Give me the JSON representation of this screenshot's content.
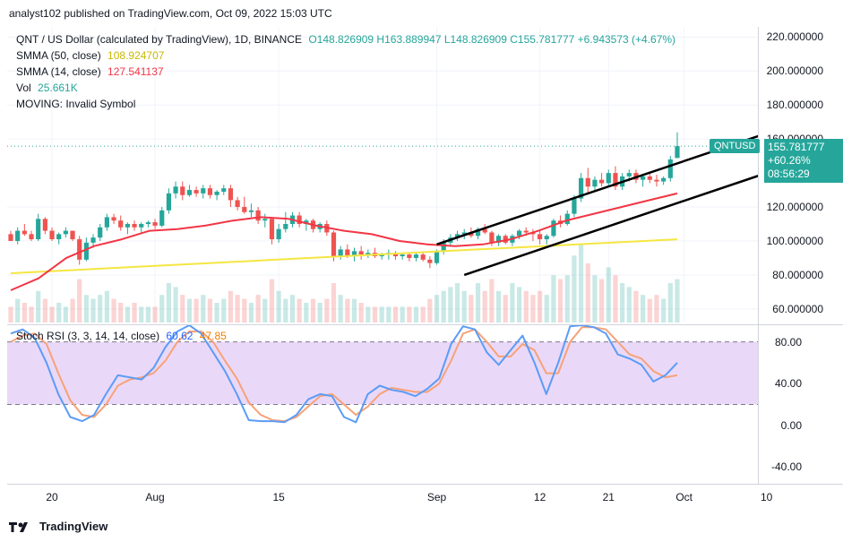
{
  "header": {
    "published": "analyst102 published on TradingView.com, Oct 09, 2022 15:03 UTC"
  },
  "legend": {
    "symbol": "QNT / US Dollar (calculated by TradingView), 1D, BINANCE",
    "ohlc": "O148.826909 H163.889947 L148.826909 C155.781777 +6.943573 (+4.67%)",
    "sma50_label": "SMMA (50, close)",
    "sma50_value": "108.924707",
    "sma14_label": "SMMA (14, close)",
    "sma14_value": "127.541137",
    "vol_label": "Vol",
    "vol_value": "25.661K",
    "moving": "MOVING: Invalid Symbol"
  },
  "rsi_legend": {
    "label": "Stoch RSI (3, 3, 14, 14, close)",
    "k": "60.62",
    "d": "47.85"
  },
  "price_tag": {
    "symbol": "QNTUSD",
    "price": "155.781777",
    "change": "+60.26%",
    "countdown": "08:56:29"
  },
  "footer": {
    "brand": "TradingView"
  },
  "colors": {
    "up": "#26a69a",
    "down": "#ef5350",
    "sma50": "#f5e642",
    "sma14": "#f23645",
    "k": "#5b9cf6",
    "d": "#f7a278",
    "band": "#e1c8f5"
  },
  "chart_data": [
    {
      "type": "candlestick",
      "ylim": [
        52,
        226
      ],
      "yticks": [
        "220.000000",
        "200.000000",
        "180.000000",
        "160.000000",
        "120.000000",
        "100.000000",
        "80.000000",
        "60.000000"
      ],
      "yticks_values": [
        220,
        200,
        180,
        160,
        120,
        100,
        80,
        60
      ],
      "xticks": [
        "20",
        "Aug",
        "15",
        "Sep",
        "12",
        "21",
        "Oct",
        "10"
      ],
      "xticks_index": [
        6,
        21,
        39,
        62,
        77,
        87,
        98,
        110
      ],
      "candles": [
        [
          104,
          106,
          100,
          100
        ],
        [
          100,
          108,
          98,
          106
        ],
        [
          106,
          110,
          103,
          104
        ],
        [
          104,
          106,
          100,
          101
        ],
        [
          101,
          116,
          100,
          113
        ],
        [
          113,
          114,
          104,
          106
        ],
        [
          106,
          108,
          100,
          101
        ],
        [
          101,
          105,
          98,
          104
        ],
        [
          104,
          108,
          102,
          106
        ],
        [
          106,
          106,
          100,
          101
        ],
        [
          101,
          103,
          86,
          89
        ],
        [
          89,
          102,
          88,
          99
        ],
        [
          99,
          104,
          96,
          102
        ],
        [
          102,
          110,
          100,
          108
        ],
        [
          108,
          116,
          106,
          114
        ],
        [
          114,
          116,
          110,
          112
        ],
        [
          112,
          115,
          106,
          108
        ],
        [
          108,
          111,
          104,
          110
        ],
        [
          110,
          112,
          106,
          108
        ],
        [
          108,
          111,
          105,
          110
        ],
        [
          110,
          112,
          108,
          111
        ],
        [
          111,
          113,
          107,
          109
        ],
        [
          109,
          120,
          108,
          118
        ],
        [
          118,
          131,
          116,
          128
        ],
        [
          128,
          135,
          125,
          132
        ],
        [
          132,
          135,
          124,
          127
        ],
        [
          127,
          133,
          126,
          130
        ],
        [
          130,
          132,
          126,
          128
        ],
        [
          128,
          133,
          125,
          131
        ],
        [
          131,
          133,
          125,
          127
        ],
        [
          127,
          130,
          124,
          129
        ],
        [
          129,
          133,
          127,
          131
        ],
        [
          131,
          133,
          120,
          124
        ],
        [
          124,
          126,
          118,
          120
        ],
        [
          120,
          126,
          116,
          117
        ],
        [
          117,
          122,
          114,
          118
        ],
        [
          118,
          120,
          110,
          112
        ],
        [
          112,
          116,
          108,
          113
        ],
        [
          113,
          114,
          98,
          101
        ],
        [
          101,
          110,
          99,
          107
        ],
        [
          107,
          117,
          105,
          110
        ],
        [
          110,
          117,
          108,
          115
        ],
        [
          115,
          117,
          108,
          110
        ],
        [
          110,
          113,
          106,
          112
        ],
        [
          112,
          113,
          105,
          107
        ],
        [
          107,
          111,
          105,
          110
        ],
        [
          110,
          112,
          103,
          105
        ],
        [
          105,
          106,
          88,
          91
        ],
        [
          91,
          97,
          89,
          95
        ],
        [
          95,
          98,
          90,
          91
        ],
        [
          91,
          96,
          88,
          94
        ],
        [
          94,
          97,
          89,
          92
        ],
        [
          92,
          95,
          90,
          93
        ],
        [
          93,
          96,
          90,
          91
        ],
        [
          91,
          93,
          89,
          92
        ],
        [
          92,
          95,
          89,
          93
        ],
        [
          93,
          94,
          89,
          91
        ],
        [
          91,
          93,
          89,
          92
        ],
        [
          92,
          93,
          88,
          90
        ],
        [
          90,
          93,
          88,
          92
        ],
        [
          92,
          94,
          88,
          89
        ],
        [
          89,
          91,
          84,
          87
        ],
        [
          87,
          95,
          86,
          94
        ],
        [
          94,
          101,
          92,
          99
        ],
        [
          99,
          104,
          97,
          102
        ],
        [
          102,
          106,
          100,
          104
        ],
        [
          104,
          107,
          101,
          105
        ],
        [
          105,
          108,
          102,
          103
        ],
        [
          103,
          108,
          101,
          107
        ],
        [
          107,
          110,
          104,
          105
        ],
        [
          105,
          106,
          97,
          99
        ],
        [
          99,
          104,
          97,
          103
        ],
        [
          103,
          104,
          98,
          99
        ],
        [
          99,
          104,
          97,
          103
        ],
        [
          103,
          107,
          101,
          106
        ],
        [
          106,
          108,
          103,
          105
        ],
        [
          105,
          107,
          100,
          104
        ],
        [
          104,
          106,
          98,
          101
        ],
        [
          101,
          104,
          98,
          103
        ],
        [
          103,
          113,
          102,
          112
        ],
        [
          112,
          115,
          108,
          110
        ],
        [
          110,
          118,
          109,
          116
        ],
        [
          116,
          127,
          114,
          125
        ],
        [
          125,
          140,
          123,
          137
        ],
        [
          137,
          143,
          128,
          132
        ],
        [
          132,
          138,
          130,
          136
        ],
        [
          136,
          140,
          132,
          134
        ],
        [
          134,
          142,
          132,
          140
        ],
        [
          140,
          144,
          130,
          132
        ],
        [
          132,
          140,
          130,
          138
        ],
        [
          138,
          142,
          135,
          140
        ],
        [
          140,
          142,
          134,
          136
        ],
        [
          136,
          139,
          132,
          138
        ],
        [
          138,
          140,
          134,
          136
        ],
        [
          136,
          139,
          132,
          135
        ],
        [
          135,
          138,
          133,
          137
        ],
        [
          137,
          150,
          135,
          148
        ],
        [
          148.83,
          163.89,
          148.83,
          155.78
        ]
      ],
      "volume_rel": [
        0.2,
        0.3,
        0.25,
        0.2,
        0.4,
        0.3,
        0.2,
        0.25,
        0.2,
        0.3,
        0.55,
        0.35,
        0.3,
        0.35,
        0.4,
        0.3,
        0.25,
        0.2,
        0.25,
        0.2,
        0.2,
        0.2,
        0.35,
        0.5,
        0.45,
        0.35,
        0.3,
        0.3,
        0.35,
        0.3,
        0.25,
        0.3,
        0.4,
        0.35,
        0.3,
        0.25,
        0.35,
        0.3,
        0.55,
        0.4,
        0.3,
        0.35,
        0.3,
        0.25,
        0.3,
        0.25,
        0.3,
        0.5,
        0.35,
        0.3,
        0.3,
        0.25,
        0.2,
        0.2,
        0.2,
        0.2,
        0.2,
        0.2,
        0.2,
        0.2,
        0.2,
        0.3,
        0.35,
        0.4,
        0.45,
        0.5,
        0.4,
        0.35,
        0.5,
        0.4,
        0.55,
        0.4,
        0.35,
        0.5,
        0.45,
        0.4,
        0.35,
        0.4,
        0.35,
        0.6,
        0.55,
        0.6,
        0.85,
        1.0,
        0.75,
        0.6,
        0.55,
        0.7,
        0.6,
        0.5,
        0.45,
        0.4,
        0.35,
        0.3,
        0.35,
        0.3,
        0.5,
        0.55
      ],
      "smma50": [
        81,
        82,
        83,
        84,
        85,
        86,
        87,
        88,
        89,
        90,
        91,
        92,
        93,
        94,
        95,
        96,
        97,
        98,
        99,
        100,
        101
      ],
      "smma14": [
        71,
        78,
        90,
        97,
        101,
        106,
        107,
        109,
        112,
        114,
        113,
        109,
        106,
        104,
        100,
        98,
        97,
        98,
        101,
        106,
        112,
        116,
        120,
        124,
        128
      ],
      "channel_upper": [
        [
          62,
          98
        ],
        [
          109,
          162
        ]
      ],
      "channel_lower": [
        [
          66,
          80
        ],
        [
          110,
          140
        ]
      ]
    },
    {
      "type": "line",
      "ylim": [
        -56,
        96
      ],
      "yticks": [
        "80.00",
        "40.00",
        "0.00",
        "-40.00"
      ],
      "yticks_values": [
        80,
        40,
        0,
        -40
      ],
      "band": [
        20,
        80
      ],
      "series": [
        {
          "name": "K",
          "values": [
            88,
            92,
            84,
            60,
            30,
            8,
            4,
            10,
            30,
            48,
            46,
            44,
            55,
            75,
            90,
            96,
            88,
            70,
            52,
            30,
            5,
            4,
            4,
            3,
            10,
            25,
            30,
            28,
            8,
            3,
            30,
            38,
            34,
            32,
            28,
            35,
            45,
            78,
            95,
            92,
            70,
            58,
            72,
            86,
            60,
            30,
            60,
            95,
            96,
            94,
            88,
            68,
            64,
            58,
            42,
            48,
            60
          ]
        },
        {
          "name": "D",
          "values": [
            80,
            86,
            88,
            78,
            50,
            24,
            10,
            8,
            20,
            38,
            44,
            46,
            50,
            62,
            80,
            90,
            90,
            80,
            62,
            45,
            22,
            10,
            5,
            4,
            8,
            18,
            28,
            30,
            20,
            10,
            18,
            30,
            36,
            34,
            32,
            32,
            40,
            62,
            88,
            92,
            80,
            66,
            66,
            78,
            72,
            50,
            50,
            80,
            94,
            94,
            92,
            80,
            68,
            64,
            52,
            46,
            48
          ]
        }
      ]
    }
  ]
}
